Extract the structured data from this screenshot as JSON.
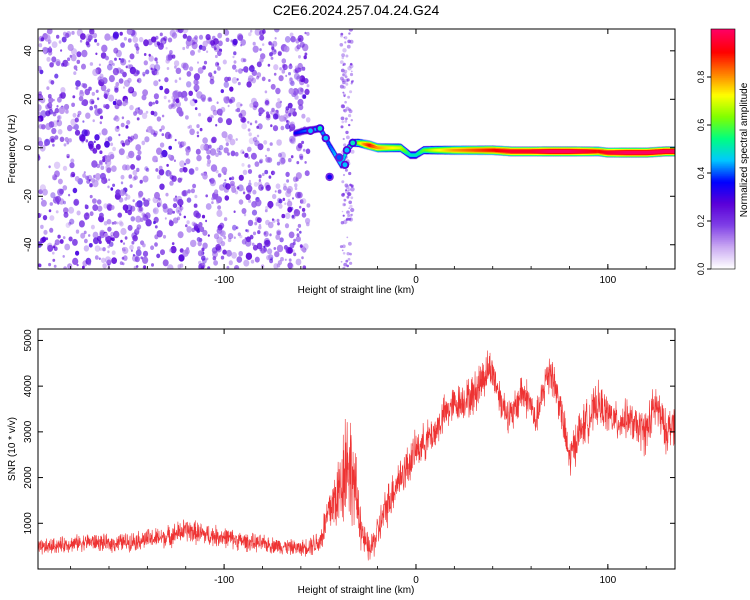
{
  "figure": {
    "title": "C2E6.2024.257.04.24.G24"
  },
  "chart_data": [
    {
      "type": "heatmap",
      "title": "C2E6.2024.257.04.24.G24",
      "xlabel": "Height of straight line (km)",
      "ylabel": "Frequency (Hz)",
      "xlim": [
        -197,
        135
      ],
      "ylim": [
        -50,
        49
      ],
      "xticks": [
        -100,
        0,
        100
      ],
      "yticks": [
        -40,
        -20,
        0,
        20,
        40
      ],
      "colorbar": {
        "label": "Normalized spectral amplitude",
        "range": [
          0,
          1
        ],
        "ticks": [
          "0.0",
          "0.2",
          "0.4",
          "0.6",
          "0.8"
        ],
        "colormap": [
          "#ffffff",
          "#c9a8f2",
          "#7f3fe6",
          "#5a00d8",
          "#0000ff",
          "#00c8ff",
          "#00ff80",
          "#80ff00",
          "#ffff00",
          "#ff8000",
          "#ff0000",
          "#ff0060"
        ]
      },
      "ridge": {
        "x": [
          -63,
          -58,
          -53,
          -50,
          -47,
          -45,
          -42,
          -39,
          -36,
          -33,
          -30,
          -27,
          -24,
          -20,
          -15,
          -8,
          -3,
          0,
          4,
          10,
          20,
          30,
          40,
          50,
          60,
          70,
          80,
          90,
          95,
          100,
          110,
          120,
          130,
          135
        ],
        "y": [
          6,
          7,
          7.5,
          8,
          4,
          1,
          -3,
          -7,
          -1,
          2,
          2,
          1.5,
          1,
          0,
          0,
          0,
          -3,
          -3,
          -1,
          -1,
          -1,
          -1,
          -1,
          -1.5,
          -1.5,
          -1.5,
          -1.5,
          -1.5,
          -1.5,
          -2,
          -2,
          -2,
          -1.5,
          -1.5
        ],
        "amplitude": [
          0.35,
          0.4,
          0.45,
          0.45,
          0.4,
          0.4,
          0.45,
          0.45,
          0.5,
          0.55,
          0.65,
          0.8,
          0.9,
          0.8,
          0.75,
          0.7,
          0.5,
          0.5,
          0.6,
          0.7,
          0.8,
          0.85,
          0.9,
          0.95,
          0.95,
          1.0,
          1.0,
          0.95,
          0.9,
          0.95,
          1.0,
          1.0,
          1.0,
          1.0
        ]
      },
      "noise_region": {
        "x_from": -197,
        "x_to": -60,
        "amplitude_range": [
          0.1,
          0.3
        ]
      }
    },
    {
      "type": "line",
      "xlabel": "Height of straight line (km)",
      "ylabel": "SNR (10 * v/v)",
      "xlim": [
        -197,
        135
      ],
      "ylim": [
        0,
        5250
      ],
      "xticks": [
        -100,
        0,
        100
      ],
      "yticks": [
        1000,
        2000,
        3000,
        4000,
        5000
      ],
      "series": [
        {
          "color": "#ee3333",
          "x": [
            -197,
            -190,
            -180,
            -170,
            -160,
            -150,
            -140,
            -130,
            -120,
            -110,
            -100,
            -90,
            -80,
            -70,
            -60,
            -50,
            -45,
            -40,
            -36,
            -33,
            -30,
            -27,
            -24,
            -20,
            -15,
            -10,
            -5,
            0,
            5,
            10,
            15,
            20,
            25,
            30,
            35,
            38,
            40,
            45,
            50,
            55,
            60,
            62,
            65,
            68,
            70,
            75,
            80,
            85,
            90,
            95,
            100,
            105,
            110,
            115,
            120,
            125,
            130,
            135
          ],
          "y": [
            450,
            500,
            550,
            600,
            550,
            600,
            650,
            700,
            850,
            750,
            700,
            600,
            550,
            500,
            450,
            600,
            1300,
            1700,
            2500,
            2000,
            1300,
            600,
            400,
            800,
            1400,
            1900,
            2200,
            2600,
            2800,
            3000,
            3400,
            3600,
            3700,
            3800,
            4200,
            4400,
            4300,
            3600,
            3300,
            3900,
            3600,
            3200,
            3600,
            4200,
            4400,
            3600,
            2400,
            3000,
            3300,
            3600,
            3400,
            3200,
            3300,
            3100,
            3000,
            3600,
            3000,
            3200
          ],
          "spread": [
            300,
            300,
            300,
            320,
            320,
            350,
            380,
            400,
            450,
            420,
            380,
            350,
            320,
            300,
            280,
            500,
            1000,
            1500,
            2400,
            1800,
            1200,
            600,
            500,
            700,
            800,
            800,
            800,
            700,
            700,
            700,
            700,
            700,
            700,
            800,
            900,
            700,
            700,
            700,
            700,
            800,
            700,
            600,
            700,
            900,
            900,
            700,
            800,
            800,
            800,
            800,
            700,
            700,
            700,
            700,
            900,
            900,
            800,
            800
          ]
        }
      ]
    }
  ]
}
